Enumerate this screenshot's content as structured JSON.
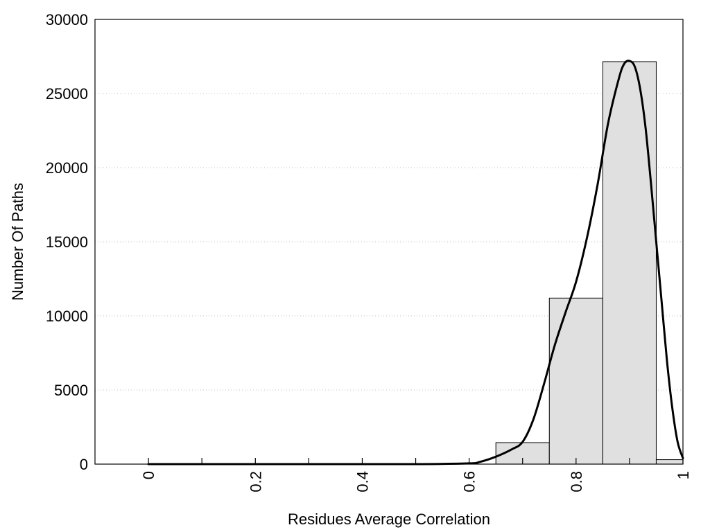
{
  "chart_data": {
    "type": "bar",
    "xlabel": "Residues Average Correlation",
    "ylabel": "Number Of Paths",
    "xlim": [
      -0.1,
      1.0
    ],
    "ylim": [
      0,
      30000
    ],
    "x_ticks": [
      0,
      0.2,
      0.4,
      0.6,
      0.8,
      1
    ],
    "x_tick_labels": [
      "0",
      "0.2",
      "0.4",
      "0.6",
      "0.8",
      "1"
    ],
    "x_minor_ticks": [
      0.1,
      0.3,
      0.5,
      0.7,
      0.9
    ],
    "y_ticks": [
      0,
      5000,
      10000,
      15000,
      20000,
      25000,
      30000
    ],
    "y_tick_labels": [
      "0",
      "5000",
      "10000",
      "15000",
      "20000",
      "25000",
      "30000"
    ],
    "grid": "horizontal dotted",
    "bar_color": "#e0e0e0",
    "curve_color": "#000000",
    "bins": [
      {
        "x0": 0.65,
        "x1": 0.75,
        "value": 1450
      },
      {
        "x0": 0.75,
        "x1": 0.85,
        "value": 11200
      },
      {
        "x0": 0.85,
        "x1": 0.95,
        "value": 27150
      },
      {
        "x0": 0.95,
        "x1": 1.0,
        "value": 300
      }
    ],
    "curve": {
      "x": [
        0.0,
        0.3,
        0.5,
        0.6,
        0.62,
        0.65,
        0.68,
        0.7,
        0.72,
        0.74,
        0.76,
        0.78,
        0.8,
        0.82,
        0.84,
        0.86,
        0.88,
        0.89,
        0.9,
        0.91,
        0.92,
        0.93,
        0.94,
        0.95,
        0.96,
        0.97,
        0.98,
        0.99,
        1.0
      ],
      "y": [
        0,
        0,
        0,
        50,
        150,
        500,
        1000,
        1500,
        3000,
        5400,
        8000,
        10200,
        12300,
        15200,
        18800,
        23000,
        26000,
        27000,
        27200,
        26800,
        25300,
        22700,
        19000,
        15000,
        11000,
        7000,
        3800,
        1500,
        400
      ]
    }
  }
}
